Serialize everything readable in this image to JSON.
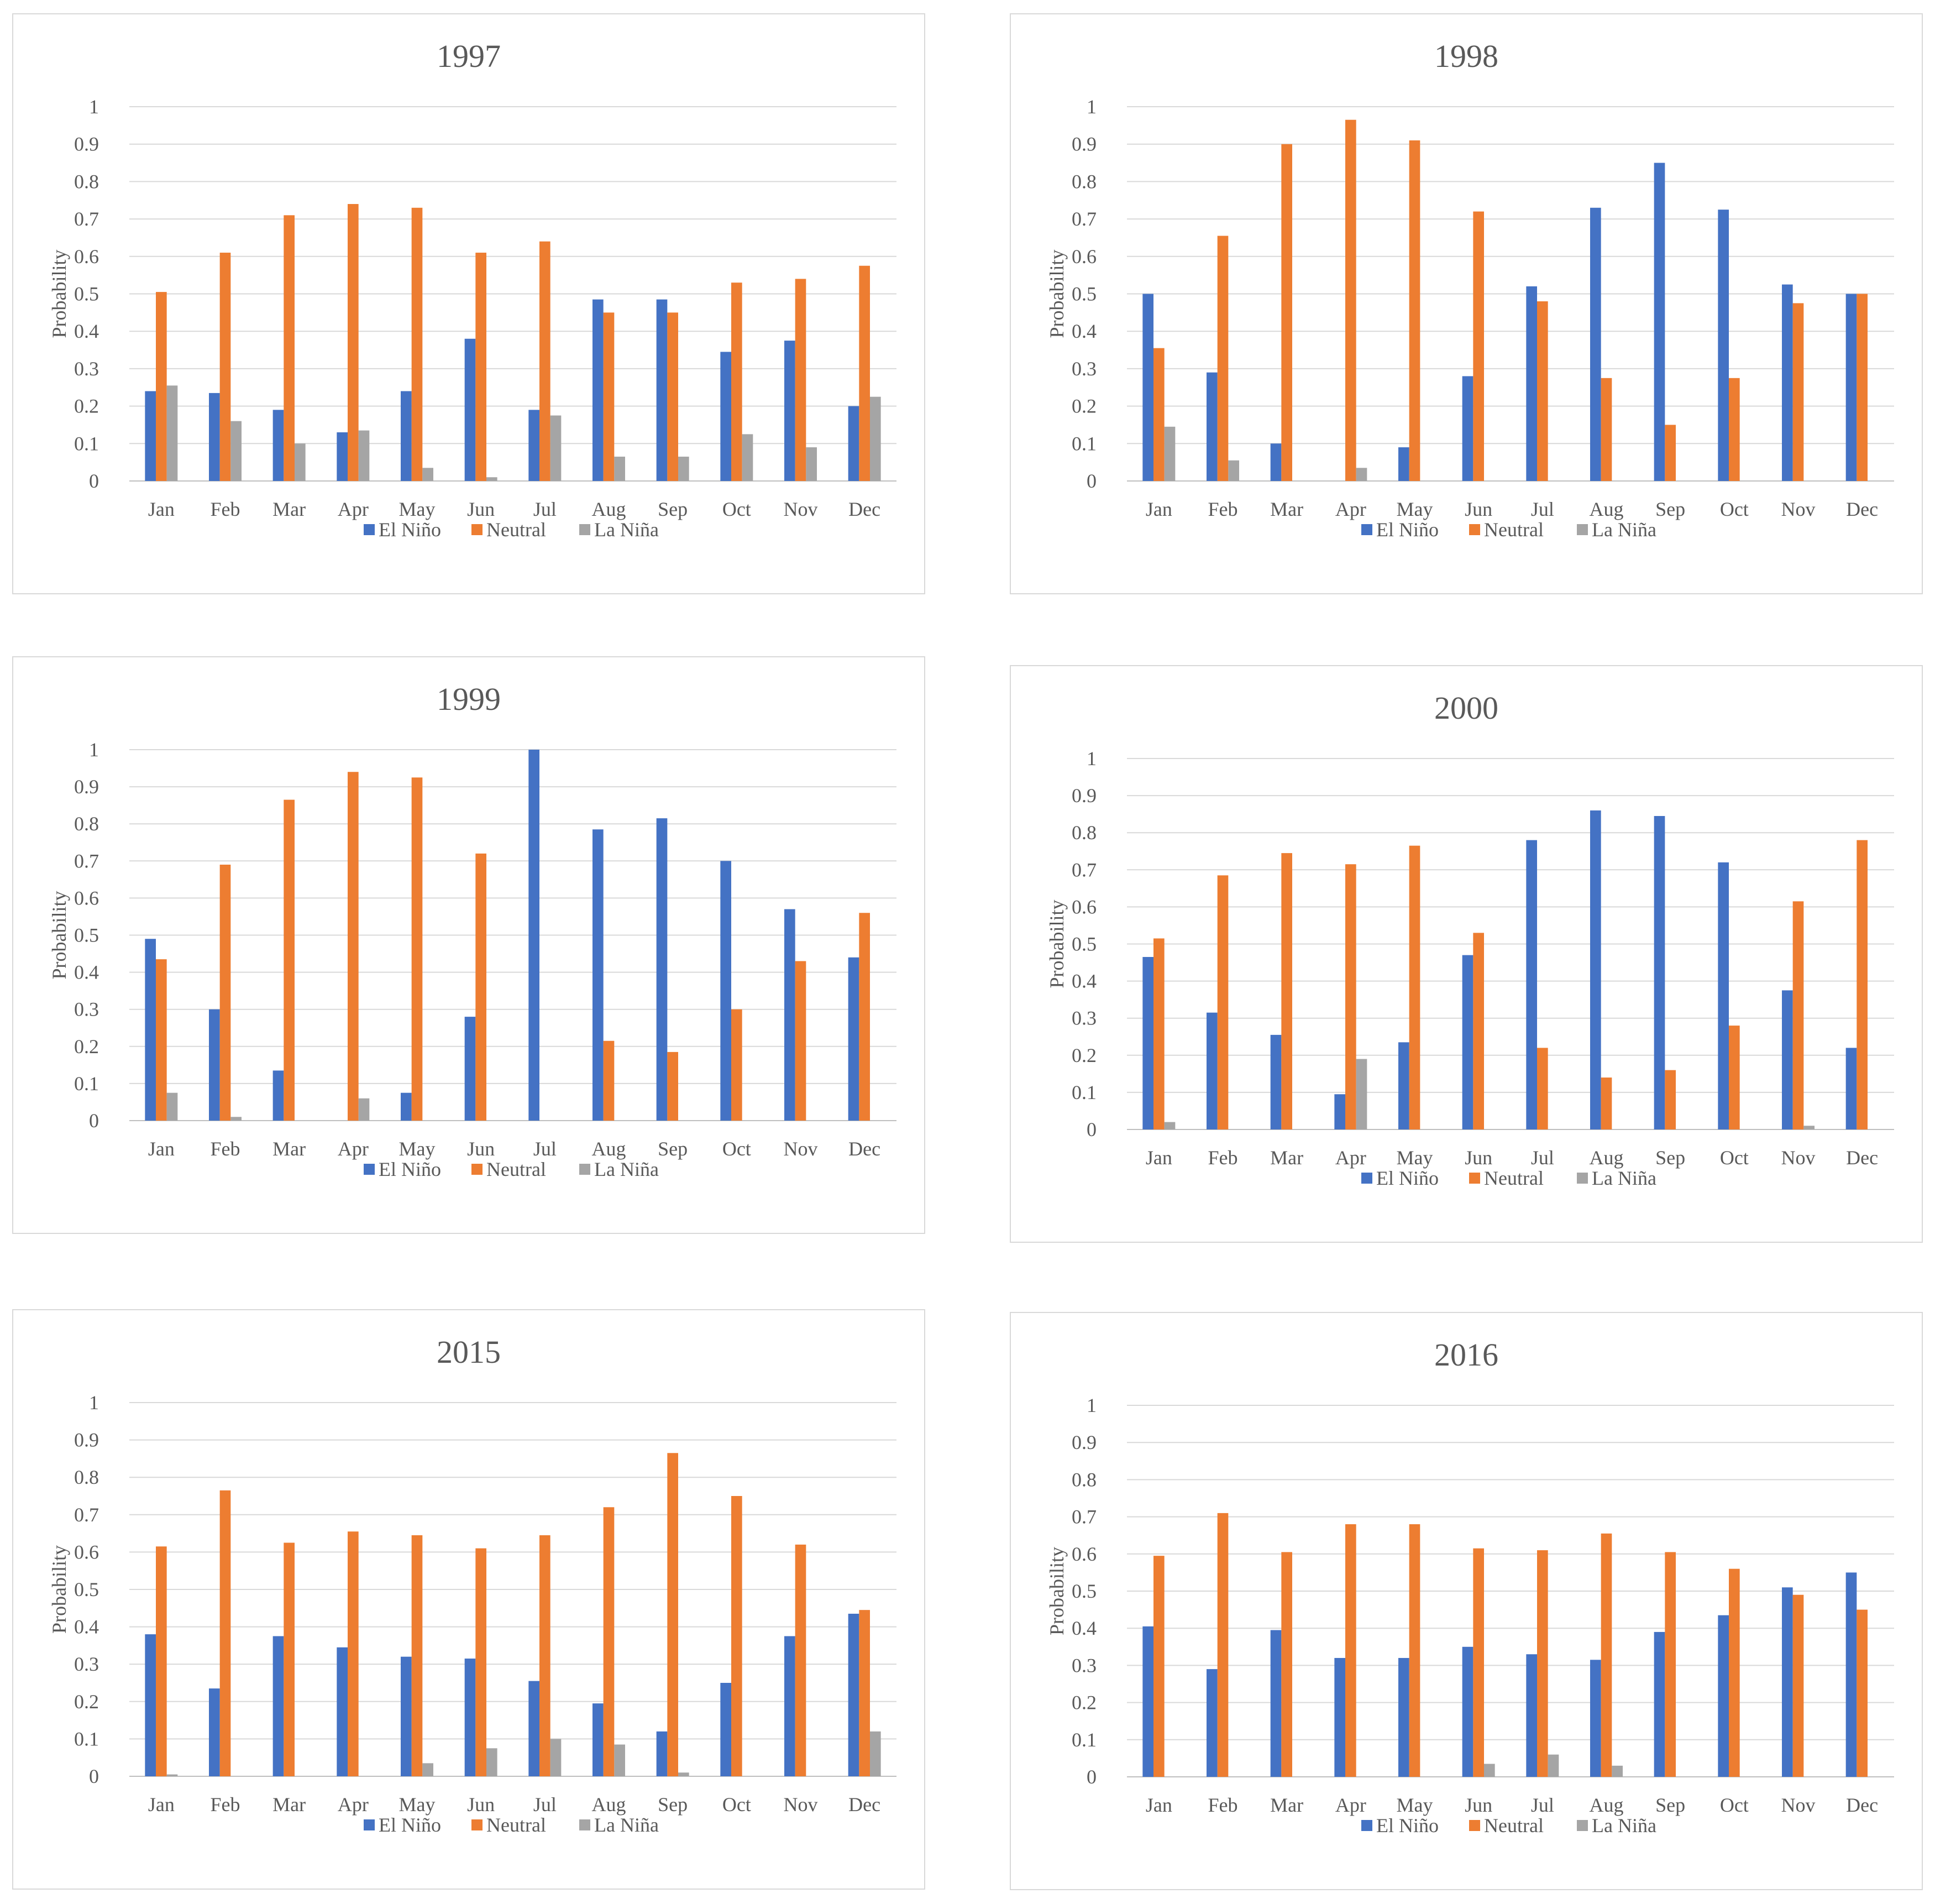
{
  "colors": {
    "el_nino": "#4472c4",
    "neutral": "#ed7d31",
    "la_nina": "#a5a5a5",
    "grid": "#d9d9d9",
    "text": "#595959"
  },
  "chart_data": [
    {
      "type": "bar",
      "title": "1997",
      "xlabel": "",
      "ylabel": "Probability",
      "ylim": [
        0,
        1
      ],
      "yticks": [
        "0",
        "0.1",
        "0.2",
        "0.3",
        "0.4",
        "0.5",
        "0.6",
        "0.7",
        "0.8",
        "0.9",
        "1"
      ],
      "legend_position": "bottom",
      "categories": [
        "Jan",
        "Feb",
        "Mar",
        "Apr",
        "May",
        "Jun",
        "Jul",
        "Aug",
        "Sep",
        "Oct",
        "Nov",
        "Dec"
      ],
      "series": [
        {
          "name": "El Niño",
          "values": [
            0.24,
            0.235,
            0.19,
            0.13,
            0.24,
            0.38,
            0.19,
            0.485,
            0.485,
            0.345,
            0.375,
            0.2
          ]
        },
        {
          "name": "Neutral",
          "values": [
            0.505,
            0.61,
            0.71,
            0.74,
            0.73,
            0.61,
            0.64,
            0.45,
            0.45,
            0.53,
            0.54,
            0.575
          ]
        },
        {
          "name": "La Niña",
          "values": [
            0.255,
            0.16,
            0.1,
            0.135,
            0.035,
            0.01,
            0.175,
            0.065,
            0.065,
            0.125,
            0.09,
            0.225
          ]
        }
      ]
    },
    {
      "type": "bar",
      "title": "1998",
      "xlabel": "",
      "ylabel": "Probability",
      "ylim": [
        0,
        1
      ],
      "yticks": [
        "0",
        "0.1",
        "0.2",
        "0.3",
        "0.4",
        "0.5",
        "0.6",
        "0.7",
        "0.8",
        "0.9",
        "1"
      ],
      "legend_position": "bottom",
      "categories": [
        "Jan",
        "Feb",
        "Mar",
        "Apr",
        "May",
        "Jun",
        "Jul",
        "Aug",
        "Sep",
        "Oct",
        "Nov",
        "Dec"
      ],
      "series": [
        {
          "name": "El Niño",
          "values": [
            0.5,
            0.29,
            0.1,
            0,
            0.09,
            0.28,
            0.52,
            0.73,
            0.85,
            0.725,
            0.525,
            0.5
          ]
        },
        {
          "name": "Neutral",
          "values": [
            0.355,
            0.655,
            0.9,
            0.965,
            0.91,
            0.72,
            0.48,
            0.275,
            0.15,
            0.275,
            0.475,
            0.5
          ]
        },
        {
          "name": "La Niña",
          "values": [
            0.145,
            0.055,
            0,
            0.035,
            0,
            0,
            0,
            0,
            0,
            0,
            0,
            0
          ]
        }
      ]
    },
    {
      "type": "bar",
      "title": "1999",
      "xlabel": "",
      "ylabel": "Probability",
      "ylim": [
        0,
        1
      ],
      "yticks": [
        "0",
        "0.1",
        "0.2",
        "0.3",
        "0.4",
        "0.5",
        "0.6",
        "0.7",
        "0.8",
        "0.9",
        "1"
      ],
      "legend_position": "bottom",
      "categories": [
        "Jan",
        "Feb",
        "Mar",
        "Apr",
        "May",
        "Jun",
        "Jul",
        "Aug",
        "Sep",
        "Oct",
        "Nov",
        "Dec"
      ],
      "series": [
        {
          "name": "El Niño",
          "values": [
            0.49,
            0.3,
            0.135,
            0,
            0.075,
            0.28,
            1.0,
            0.785,
            0.815,
            0.7,
            0.57,
            0.44
          ]
        },
        {
          "name": "Neutral",
          "values": [
            0.435,
            0.69,
            0.865,
            0.94,
            0.925,
            0.72,
            0,
            0.215,
            0.185,
            0.3,
            0.43,
            0.56
          ]
        },
        {
          "name": "La Niña",
          "values": [
            0.075,
            0.01,
            0,
            0.06,
            0,
            0,
            0,
            0,
            0,
            0,
            0,
            0
          ]
        }
      ]
    },
    {
      "type": "bar",
      "title": "2000",
      "xlabel": "",
      "ylabel": "Probability",
      "ylim": [
        0,
        1
      ],
      "yticks": [
        "0",
        "0.1",
        "0.2",
        "0.3",
        "0.4",
        "0.5",
        "0.6",
        "0.7",
        "0.8",
        "0.9",
        "1"
      ],
      "legend_position": "bottom",
      "categories": [
        "Jan",
        "Feb",
        "Mar",
        "Apr",
        "May",
        "Jun",
        "Jul",
        "Aug",
        "Sep",
        "Oct",
        "Nov",
        "Dec"
      ],
      "series": [
        {
          "name": "El Niño",
          "values": [
            0.465,
            0.315,
            0.255,
            0.095,
            0.235,
            0.47,
            0.78,
            0.86,
            0.845,
            0.72,
            0.375,
            0.22
          ]
        },
        {
          "name": "Neutral",
          "values": [
            0.515,
            0.685,
            0.745,
            0.715,
            0.765,
            0.53,
            0.22,
            0.14,
            0.16,
            0.28,
            0.615,
            0.78
          ]
        },
        {
          "name": "La Niña",
          "values": [
            0.02,
            0,
            0,
            0.19,
            0,
            0,
            0,
            0,
            0,
            0,
            0.01,
            0
          ]
        }
      ]
    },
    {
      "type": "bar",
      "title": "2015",
      "xlabel": "",
      "ylabel": "Probability",
      "ylim": [
        0,
        1
      ],
      "yticks": [
        "0",
        "0.1",
        "0.2",
        "0.3",
        "0.4",
        "0.5",
        "0.6",
        "0.7",
        "0.8",
        "0.9",
        "1"
      ],
      "legend_position": "bottom",
      "categories": [
        "Jan",
        "Feb",
        "Mar",
        "Apr",
        "May",
        "Jun",
        "Jul",
        "Aug",
        "Sep",
        "Oct",
        "Nov",
        "Dec"
      ],
      "series": [
        {
          "name": "El Niño",
          "values": [
            0.38,
            0.235,
            0.375,
            0.345,
            0.32,
            0.315,
            0.255,
            0.195,
            0.12,
            0.25,
            0.375,
            0.435
          ]
        },
        {
          "name": "Neutral",
          "values": [
            0.615,
            0.765,
            0.625,
            0.655,
            0.645,
            0.61,
            0.645,
            0.72,
            0.865,
            0.75,
            0.62,
            0.445
          ]
        },
        {
          "name": "La Niña",
          "values": [
            0.005,
            0,
            0,
            0,
            0.035,
            0.075,
            0.1,
            0.085,
            0.01,
            0,
            0,
            0.12
          ]
        }
      ]
    },
    {
      "type": "bar",
      "title": "2016",
      "xlabel": "",
      "ylabel": "Probability",
      "ylim": [
        0,
        1
      ],
      "yticks": [
        "0",
        "0.1",
        "0.2",
        "0.3",
        "0.4",
        "0.5",
        "0.6",
        "0.7",
        "0.8",
        "0.9",
        "1"
      ],
      "legend_position": "bottom",
      "categories": [
        "Jan",
        "Feb",
        "Mar",
        "Apr",
        "May",
        "Jun",
        "Jul",
        "Aug",
        "Sep",
        "Oct",
        "Nov",
        "Dec"
      ],
      "series": [
        {
          "name": "El Niño",
          "values": [
            0.405,
            0.29,
            0.395,
            0.32,
            0.32,
            0.35,
            0.33,
            0.315,
            0.39,
            0.435,
            0.51,
            0.55
          ]
        },
        {
          "name": "Neutral",
          "values": [
            0.595,
            0.71,
            0.605,
            0.68,
            0.68,
            0.615,
            0.61,
            0.655,
            0.605,
            0.56,
            0.49,
            0.45
          ]
        },
        {
          "name": "La Niña",
          "values": [
            0,
            0,
            0,
            0,
            0,
            0.035,
            0.06,
            0.03,
            0,
            0,
            0,
            0
          ]
        }
      ]
    }
  ]
}
